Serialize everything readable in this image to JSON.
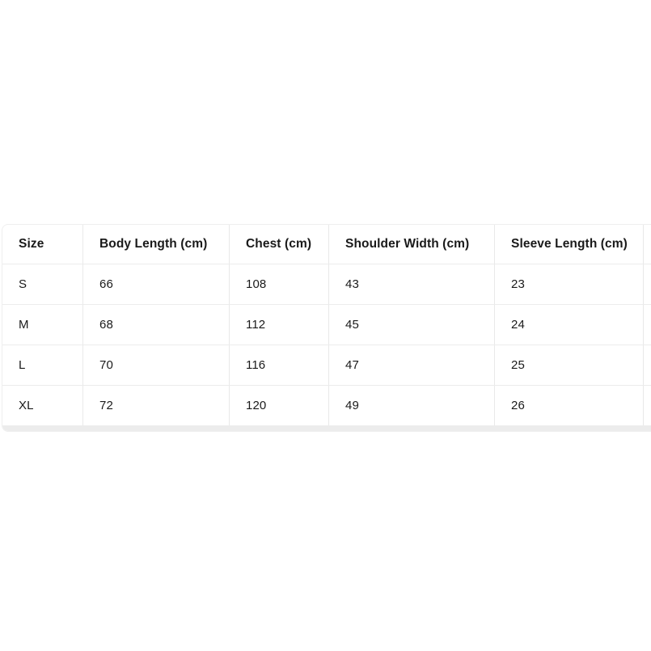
{
  "page": {
    "background": "#ffffff"
  },
  "size_chart": {
    "headers": [
      "Size",
      "Body Length (cm)",
      "Chest (cm)",
      "Shoulder Width (cm)",
      "Sleeve Length (cm)"
    ],
    "rows": [
      [
        "S",
        "66",
        "108",
        "43",
        "23"
      ],
      [
        "M",
        "68",
        "112",
        "45",
        "24"
      ],
      [
        "L",
        "70",
        "116",
        "47",
        "25"
      ],
      [
        "XL",
        "72",
        "120",
        "49",
        "26"
      ]
    ],
    "colors": {
      "card_border": "#efefef",
      "column_divider": "#e9e9e9",
      "row_divider": "#ececec",
      "text": "#1a1a1a",
      "scrollbar_track": "#ececec"
    }
  }
}
